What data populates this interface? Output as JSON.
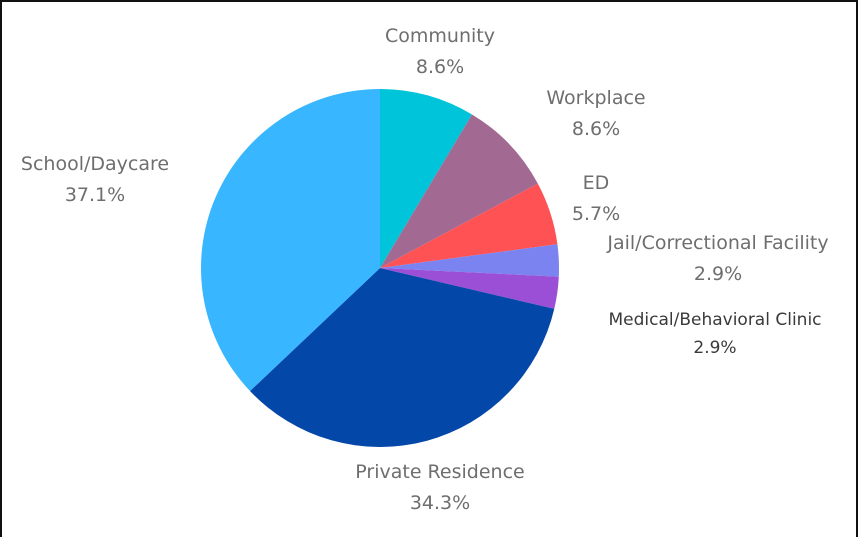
{
  "chart_data": {
    "type": "pie",
    "title": "",
    "start_angle_deg": 0,
    "direction": "clockwise",
    "slices": [
      {
        "label": "Community",
        "value": 8.6,
        "pct_text": "8.6%",
        "color": "#00C4DA"
      },
      {
        "label": "Workplace",
        "value": 8.6,
        "pct_text": "8.6%",
        "color": "#A26A93"
      },
      {
        "label": "ED",
        "value": 5.7,
        "pct_text": "5.7%",
        "color": "#FF5254"
      },
      {
        "label": "Jail/Correctional Facility",
        "value": 2.9,
        "pct_text": "2.9%",
        "color": "#7A83F0"
      },
      {
        "label": "Medical/Behavioral Clinic",
        "value": 2.9,
        "pct_text": "2.9%",
        "color": "#9B4FD6"
      },
      {
        "label": "Private Residence",
        "value": 34.3,
        "pct_text": "34.3%",
        "color": "#0347A8"
      },
      {
        "label": "School/Daycare",
        "value": 37.1,
        "pct_text": "37.1%",
        "color": "#38B6FF"
      }
    ],
    "legend": "none (labels placed beside slices)"
  }
}
